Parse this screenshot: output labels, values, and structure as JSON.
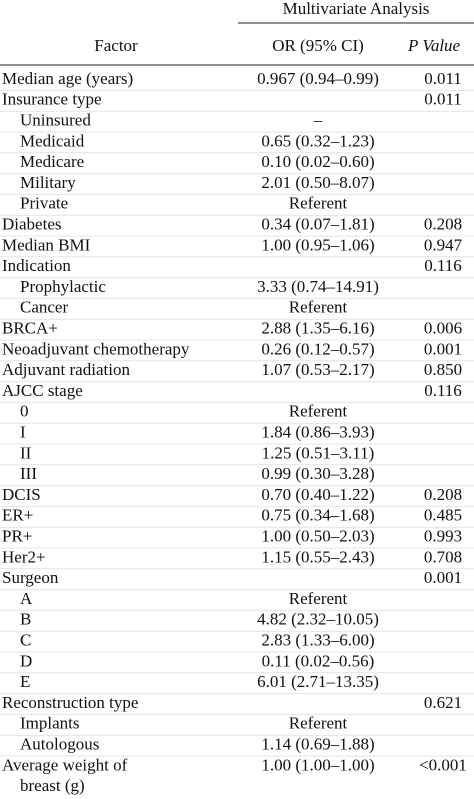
{
  "table": {
    "group_header": "Multivariate Analysis",
    "headers": [
      "Factor",
      "OR (95% CI)",
      "P Value"
    ],
    "rows": [
      {
        "factor": [
          "Median age (years)"
        ],
        "or": "0.967 (0.94–0.99)",
        "p": "0.011"
      },
      {
        "factor": [
          "Insurance type"
        ],
        "p": "0.011"
      },
      {
        "factor": [
          "Uninsured"
        ],
        "or": "–",
        "level": 1
      },
      {
        "factor": [
          "Medicaid"
        ],
        "or": "0.65 (0.32–1.23)",
        "level": 1
      },
      {
        "factor": [
          "Medicare"
        ],
        "or": "0.10 (0.02–0.60)",
        "level": 1
      },
      {
        "factor": [
          "Military"
        ],
        "or": "2.01 (0.50–8.07)",
        "level": 1
      },
      {
        "factor": [
          "Private"
        ],
        "or": "Referent",
        "level": 1
      },
      {
        "factor": [
          "Diabetes"
        ],
        "or": "0.34 (0.07–1.81)",
        "p": "0.208"
      },
      {
        "factor": [
          "Median BMI"
        ],
        "or": "1.00 (0.95–1.06)",
        "p": "0.947"
      },
      {
        "factor": [
          "Indication"
        ],
        "p": "0.116"
      },
      {
        "factor": [
          "Prophylactic"
        ],
        "or": "3.33 (0.74–14.91)",
        "level": 1
      },
      {
        "factor": [
          "Cancer"
        ],
        "or": "Referent",
        "level": 1
      },
      {
        "factor": [
          "BRCA+"
        ],
        "or": "2.88 (1.35–6.16)",
        "p": "0.006"
      },
      {
        "factor": [
          "Neoadjuvant chemotherapy"
        ],
        "or": "0.26 (0.12–0.57)",
        "p": "0.001"
      },
      {
        "factor": [
          "Adjuvant radiation"
        ],
        "or": "1.07 (0.53–2.17)",
        "p": "0.850"
      },
      {
        "factor": [
          "AJCC stage"
        ],
        "p": "0.116"
      },
      {
        "factor": [
          "0"
        ],
        "or": "Referent",
        "level": 1
      },
      {
        "factor": [
          "I"
        ],
        "or": "1.84 (0.86–3.93)",
        "level": 1
      },
      {
        "factor": [
          "II"
        ],
        "or": "1.25 (0.51–3.11)",
        "level": 1
      },
      {
        "factor": [
          "III"
        ],
        "or": "0.99 (0.30–3.28)",
        "level": 1
      },
      {
        "factor": [
          "DCIS"
        ],
        "or": "0.70 (0.40–1.22)",
        "p": "0.208"
      },
      {
        "factor": [
          "ER+"
        ],
        "or": "0.75 (0.34–1.68)",
        "p": "0.485"
      },
      {
        "factor": [
          "PR+"
        ],
        "or": "1.00 (0.50–2.03)",
        "p": "0.993"
      },
      {
        "factor": [
          "Her2+"
        ],
        "or": "1.15 (0.55–2.43)",
        "p": "0.708"
      },
      {
        "factor": [
          "Surgeon"
        ],
        "p": "0.001"
      },
      {
        "factor": [
          "A"
        ],
        "or": "Referent",
        "level": 1
      },
      {
        "factor": [
          "B"
        ],
        "or": "4.82 (2.32–10.05)",
        "level": 1
      },
      {
        "factor": [
          "C"
        ],
        "or": "2.83 (1.33–6.00)",
        "level": 1
      },
      {
        "factor": [
          "D"
        ],
        "or": "0.11 (0.02–0.56)",
        "level": 1
      },
      {
        "factor": [
          "E"
        ],
        "or": "6.01 (2.71–13.35)",
        "level": 1
      },
      {
        "factor": [
          "Reconstruction type"
        ],
        "p": "0.621"
      },
      {
        "factor": [
          "Implants"
        ],
        "or": "Referent",
        "level": 1
      },
      {
        "factor": [
          "Autologous"
        ],
        "or": "1.14 (0.69–1.88)",
        "level": 1
      },
      {
        "factor": [
          "Average weight of",
          "breast (g)"
        ],
        "or": "1.00 (1.00–1.00)",
        "p": "<0.001"
      }
    ]
  }
}
